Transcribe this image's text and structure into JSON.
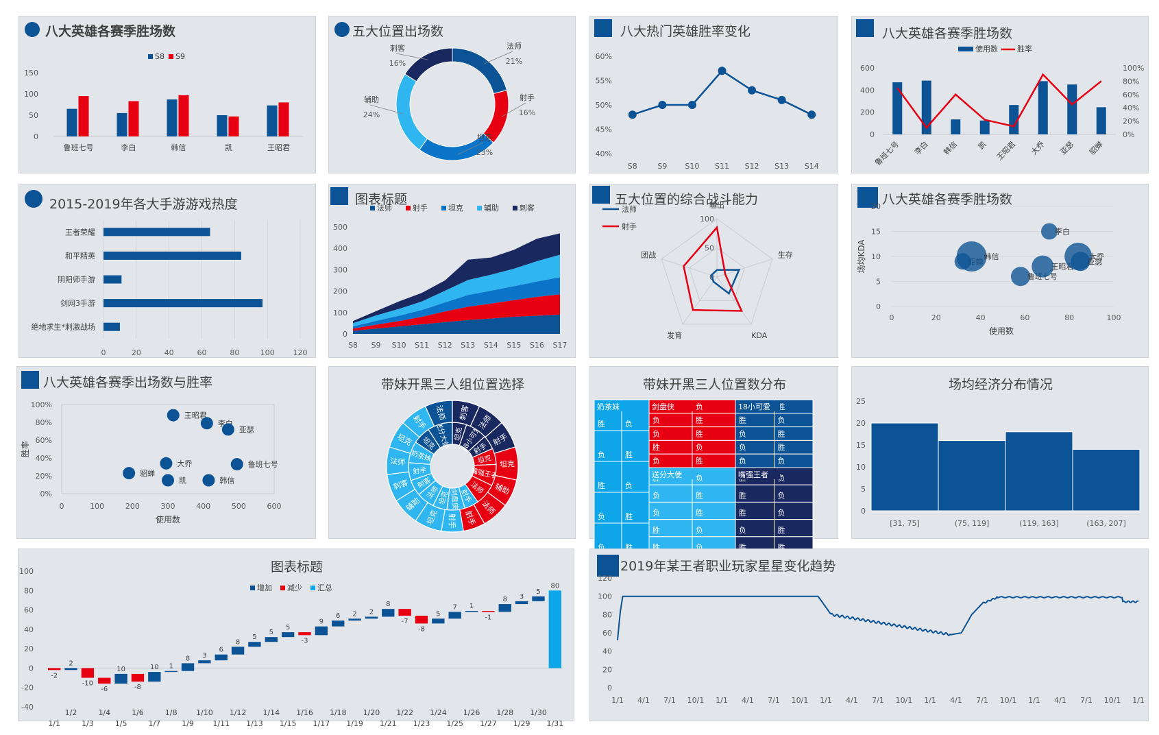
{
  "colors": {
    "blue": "#0b5394",
    "red": "#e60012",
    "cyan": "#0ea5e9",
    "light": "#2fb5f0",
    "navy": "#1a2860",
    "mid": "#0a75c8",
    "grid": "#c9ccd1"
  },
  "panels": {
    "p1": {
      "title": "八大英雄各赛季胜场数"
    },
    "p2": {
      "title": "五大位置出场数"
    },
    "p3": {
      "title": "八大热门英雄胜率变化"
    },
    "p4": {
      "title": "八大英雄各赛季胜场数"
    },
    "p5": {
      "title": "2015-2019年各大手游游戏热度"
    },
    "p6": {
      "title": "图表标题"
    },
    "p7": {
      "title": "五大位置的综合战斗能力"
    },
    "p8": {
      "title": "八大英雄各赛季胜场数"
    },
    "p9": {
      "title": "八大英雄各赛季出场数与胜率"
    },
    "p10": {
      "title": "带妹开黑三人组位置选择"
    },
    "p11": {
      "title": "带妹开黑三人位置数分布"
    },
    "p12": {
      "title": "场均经济分布情况"
    },
    "p13": {
      "title": "图表标题"
    },
    "p14": {
      "title": "2019年某王者职业玩家星星变化趋势"
    }
  },
  "chart_data": [
    {
      "id": "p1",
      "type": "bar",
      "categories": [
        "鲁班七号",
        "李白",
        "韩信",
        "凯",
        "王昭君"
      ],
      "series": [
        {
          "name": "S8",
          "values": [
            65,
            55,
            87,
            50,
            73
          ]
        },
        {
          "name": "S9",
          "values": [
            95,
            83,
            97,
            47,
            80
          ]
        }
      ],
      "yticks": [
        0,
        50,
        100,
        150
      ],
      "ylim": [
        0,
        150
      ],
      "legend": "top"
    },
    {
      "id": "p2",
      "type": "pie",
      "donut": true,
      "slices": [
        {
          "label": "法师",
          "value": 21,
          "pct": "21%"
        },
        {
          "label": "射手",
          "value": 16,
          "pct": "16%"
        },
        {
          "label": "坦克",
          "value": 23,
          "pct": "23%"
        },
        {
          "label": "辅助",
          "value": 24,
          "pct": "24%"
        },
        {
          "label": "刺客",
          "value": 16,
          "pct": "16%"
        }
      ]
    },
    {
      "id": "p3",
      "type": "line",
      "categories": [
        "S8",
        "S9",
        "S10",
        "S11",
        "S12",
        "S13",
        "S14"
      ],
      "values": [
        48,
        50,
        50,
        57,
        53,
        51,
        48
      ],
      "yticks": [
        "40%",
        "45%",
        "50%",
        "55%",
        "60%"
      ],
      "ylim": [
        40,
        60
      ]
    },
    {
      "id": "p4",
      "type": "bar",
      "combo": true,
      "categories": [
        "鲁班七号",
        "李白",
        "韩信",
        "凯",
        "王昭君",
        "大乔",
        "亚瑟",
        "貂蝉"
      ],
      "series": [
        {
          "name": "使用数",
          "values": [
            470,
            485,
            135,
            125,
            265,
            480,
            450,
            245
          ]
        },
        {
          "name": "胜率",
          "values": [
            70,
            10,
            60,
            22,
            12,
            90,
            45,
            80
          ]
        }
      ],
      "yticks_left": [
        0,
        200,
        400,
        600
      ],
      "yticks_right": [
        "0%",
        "20%",
        "40%",
        "60%",
        "80%",
        "100%"
      ],
      "legend": "top"
    },
    {
      "id": "p5",
      "type": "bar",
      "horizontal": true,
      "categories": [
        "王者荣耀",
        "和平精英",
        "阴阳师手游",
        "剑网3手游",
        "绝地求生*刺激战场"
      ],
      "values": [
        65,
        84,
        11,
        97,
        10
      ],
      "xticks": [
        0,
        20,
        40,
        60,
        80,
        100,
        120
      ],
      "xlim": [
        0,
        120
      ]
    },
    {
      "id": "p6",
      "type": "area",
      "stacked": true,
      "categories": [
        "S8",
        "S9",
        "S10",
        "S11",
        "S12",
        "S13",
        "S14",
        "S15",
        "S16",
        "S17"
      ],
      "series": [
        {
          "name": "法师",
          "values": [
            15,
            25,
            35,
            45,
            55,
            65,
            72,
            80,
            85,
            90
          ]
        },
        {
          "name": "射手",
          "values": [
            10,
            18,
            25,
            35,
            50,
            62,
            70,
            78,
            88,
            95
          ]
        },
        {
          "name": "坦克",
          "values": [
            10,
            18,
            25,
            32,
            42,
            55,
            60,
            65,
            72,
            80
          ]
        },
        {
          "name": "辅助",
          "values": [
            15,
            25,
            32,
            40,
            55,
            70,
            75,
            82,
            95,
            105
          ]
        },
        {
          "name": "刺客",
          "values": [
            10,
            20,
            35,
            40,
            48,
            95,
            80,
            88,
            105,
            100
          ]
        }
      ],
      "yticks": [
        0,
        100,
        200,
        300,
        400,
        500
      ],
      "ylim": [
        0,
        500
      ],
      "legend": "top"
    },
    {
      "id": "p7",
      "type": "radar",
      "axes": [
        "输出",
        "生存",
        "KDA",
        "发育",
        "团战"
      ],
      "ticks": [
        "0",
        "50",
        "100"
      ],
      "rmax": 100,
      "series": [
        {
          "name": "法师",
          "values": [
            12,
            40,
            35,
            10,
            10
          ]
        },
        {
          "name": "射手",
          "values": [
            85,
            15,
            72,
            70,
            60
          ]
        }
      ],
      "legend": "top-left"
    },
    {
      "id": "p8",
      "type": "scatter",
      "bubble": true,
      "xlabel": "使用数",
      "ylabel": "场均KDA",
      "xticks": [
        0,
        20,
        40,
        60,
        80,
        100
      ],
      "yticks": [
        0,
        5,
        10,
        15,
        20
      ],
      "xlim": [
        0,
        100
      ],
      "ylim": [
        0,
        20
      ],
      "points": [
        {
          "label": "貂蝉",
          "x": 32,
          "y": 9,
          "r": 12
        },
        {
          "label": "韩信",
          "x": 36,
          "y": 10,
          "r": 22
        },
        {
          "label": "鲁班七号",
          "x": 58,
          "y": 6,
          "r": 14
        },
        {
          "label": "李白",
          "x": 71,
          "y": 15,
          "r": 12
        },
        {
          "label": "王昭君",
          "x": 68,
          "y": 8,
          "r": 16
        },
        {
          "label": "大乔",
          "x": 84,
          "y": 10,
          "r": 20
        },
        {
          "label": "亚瑟",
          "x": 85,
          "y": 9,
          "r": 14
        }
      ]
    },
    {
      "id": "p9",
      "type": "scatter",
      "xlabel": "使用数",
      "ylabel": "胜率",
      "xticks": [
        0,
        100,
        200,
        300,
        400,
        500,
        600
      ],
      "yticks": [
        "0%",
        "20%",
        "40%",
        "60%",
        "80%",
        "100%"
      ],
      "xlim": [
        0,
        600
      ],
      "ylim": [
        0,
        100
      ],
      "points": [
        {
          "label": "王昭君",
          "x": 315,
          "y": 88
        },
        {
          "label": "李白",
          "x": 410,
          "y": 79
        },
        {
          "label": "亚瑟",
          "x": 470,
          "y": 72
        },
        {
          "label": "大乔",
          "x": 295,
          "y": 34
        },
        {
          "label": "鲁班七号",
          "x": 495,
          "y": 33
        },
        {
          "label": "貂蝉",
          "x": 190,
          "y": 23
        },
        {
          "label": "凯",
          "x": 300,
          "y": 15
        },
        {
          "label": "韩信",
          "x": 415,
          "y": 15
        }
      ]
    },
    {
      "id": "p10",
      "type": "pie",
      "sunburst": true,
      "inner": [
        {
          "label": "坦克",
          "value": 8,
          "color": "#1a2860"
        },
        {
          "label": "18小可爱",
          "value": 12,
          "color": "#1a2860"
        },
        {
          "label": "射手",
          "value": 8,
          "color": "#1a2860"
        },
        {
          "label": "坦克",
          "value": 9,
          "color": "#e60012"
        },
        {
          "label": "嘴强王者",
          "value": 12,
          "color": "#e60012"
        },
        {
          "label": "法师",
          "value": 12,
          "color": "#e60012"
        },
        {
          "label": "射手",
          "value": 8,
          "color": "#2fb5f0"
        },
        {
          "label": "剑盘侠",
          "value": 10,
          "color": "#2fb5f0"
        },
        {
          "label": "坦克",
          "value": 8,
          "color": "#2fb5f0"
        },
        {
          "label": "法师",
          "value": 10,
          "color": "#2fb5f0"
        },
        {
          "label": "刺客",
          "value": 9,
          "color": "#2fb5f0"
        },
        {
          "label": "射手",
          "value": 10,
          "color": "#2fb5f0"
        },
        {
          "label": "奶茶妹",
          "value": 12,
          "color": "#2fb5f0"
        },
        {
          "label": "坦克",
          "value": 10,
          "color": "#0b5394"
        },
        {
          "label": "送分大使",
          "value": 14,
          "color": "#0b5394"
        }
      ],
      "outer": [
        {
          "label": "刺客",
          "value": 10,
          "color": "#1a2860"
        },
        {
          "label": "法师",
          "value": 10,
          "color": "#1a2860"
        },
        {
          "label": "射手",
          "value": 10,
          "color": "#1a2860"
        },
        {
          "label": "坦克",
          "value": 12,
          "color": "#e60012"
        },
        {
          "label": "辅助",
          "value": 10,
          "color": "#e60012"
        },
        {
          "label": "法师",
          "value": 10,
          "color": "#e60012"
        },
        {
          "label": "射手",
          "value": 8,
          "color": "#e60012"
        },
        {
          "label": "射手",
          "value": 8,
          "color": "#2fb5f0"
        },
        {
          "label": "坦克",
          "value": 10,
          "color": "#2fb5f0"
        },
        {
          "label": "辅助",
          "value": 10,
          "color": "#2fb5f0"
        },
        {
          "label": "刺客",
          "value": 10,
          "color": "#2fb5f0"
        },
        {
          "label": "法师",
          "value": 10,
          "color": "#2fb5f0"
        },
        {
          "label": "坦克",
          "value": 10,
          "color": "#2fb5f0"
        },
        {
          "label": "射手",
          "value": 10,
          "color": "#2fb5f0"
        },
        {
          "label": "法师",
          "value": 10,
          "color": "#0b5394"
        }
      ]
    },
    {
      "id": "p11",
      "type": "table",
      "treemap": true,
      "groups": [
        {
          "label": "奶茶妹",
          "color": "#0ea5e9",
          "cells": [
            "胜",
            "负",
            "负",
            "胜",
            "胜",
            "负",
            "负",
            "胜",
            "负",
            "胜"
          ]
        },
        {
          "label": "剑盘侠",
          "color": "#e60012",
          "cells": [
            "胜",
            "负",
            "负",
            "胜",
            "负",
            "胜",
            "胜",
            "负",
            "负",
            "胜"
          ]
        },
        {
          "label": "18小可爱",
          "color": "#0b5394",
          "cells": [
            "负",
            "胜",
            "胜",
            "负",
            "负",
            "胜",
            "负",
            "胜",
            "负",
            "负"
          ]
        },
        {
          "label": "送分大使",
          "color": "#2fb5f0",
          "cells": [
            "胜",
            "负",
            "负",
            "胜",
            "负",
            "胜",
            "胜",
            "负",
            "胜",
            "负"
          ]
        },
        {
          "label": "嘴强王者",
          "color": "#1a2860",
          "cells": [
            "胜",
            "负",
            "胜",
            "负",
            "胜",
            "负",
            "负",
            "胜",
            "胜",
            "胜"
          ]
        }
      ]
    },
    {
      "id": "p12",
      "type": "bar",
      "histogram": true,
      "categories": [
        "[31, 75]",
        "(75, 119]",
        "(119, 163]",
        "(163, 207]"
      ],
      "values": [
        20,
        16,
        18,
        14
      ],
      "yticks": [
        0,
        5,
        10,
        15,
        20,
        25
      ],
      "ylim": [
        0,
        25
      ]
    },
    {
      "id": "p13",
      "type": "bar",
      "waterfall": true,
      "categories": [
        "1/1",
        "1/2",
        "1/3",
        "1/4",
        "1/5",
        "1/6",
        "1/7",
        "1/8",
        "1/9",
        "1/10",
        "1/11",
        "1/12",
        "1/13",
        "1/14",
        "1/15",
        "1/16",
        "1/17",
        "1/18",
        "1/19",
        "1/20",
        "1/21",
        "1/22",
        "1/23",
        "1/24",
        "1/25",
        "1/26",
        "1/27",
        "1/28",
        "1/29",
        "1/30",
        "1/31"
      ],
      "values": [
        -2,
        2,
        -10,
        -6,
        10,
        -8,
        10,
        1,
        8,
        3,
        6,
        8,
        5,
        5,
        5,
        -3,
        9,
        6,
        2,
        2,
        8,
        -7,
        -8,
        5,
        7,
        1,
        -1,
        8,
        3,
        5,
        80
      ],
      "yticks": [
        -40,
        -20,
        0,
        20,
        40,
        60,
        80,
        100
      ],
      "ylim": [
        -40,
        100
      ],
      "legend_items": [
        "增加",
        "减少",
        "汇总"
      ],
      "legend": "top"
    },
    {
      "id": "p14",
      "type": "line",
      "xticks": [
        "1/1",
        "4/1",
        "7/1",
        "10/1",
        "1/1",
        "4/1",
        "7/1",
        "10/1",
        "1/1",
        "4/1",
        "7/1",
        "10/1",
        "1/1",
        "4/1",
        "7/1",
        "10/1",
        "1/1",
        "4/1",
        "7/1",
        "10/1",
        "1/1"
      ],
      "yticks": [
        0,
        20,
        40,
        60,
        80,
        100,
        120
      ],
      "ylim": [
        0,
        120
      ]
    }
  ]
}
